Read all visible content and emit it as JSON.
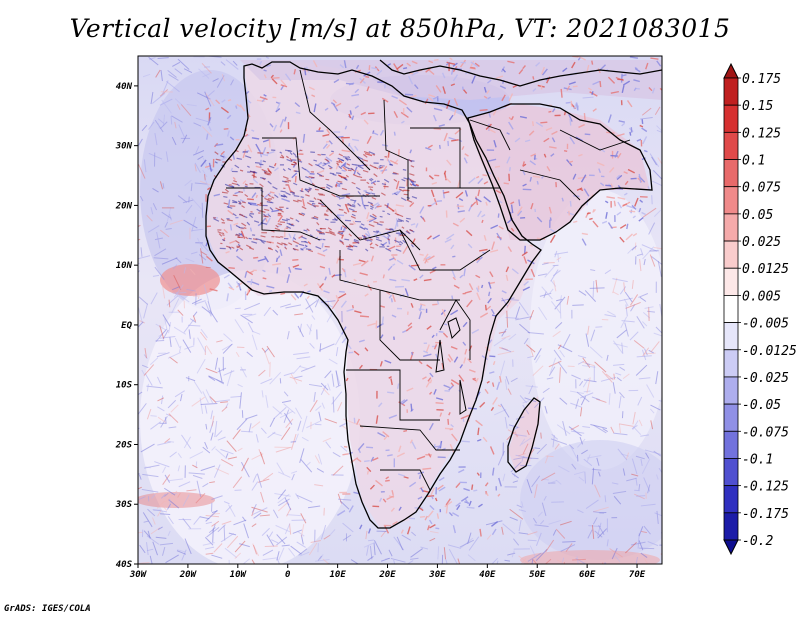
{
  "title": "Vertical velocity [m/s] at 850hPa, VT: 2021083015",
  "footer": "GrADS: IGES/COLA",
  "map": {
    "lon_range": [
      -30,
      75
    ],
    "lat_range": [
      -40,
      45
    ],
    "lat_ticks": [
      {
        "value": 40,
        "label": "40N"
      },
      {
        "value": 30,
        "label": "30N"
      },
      {
        "value": 20,
        "label": "20N"
      },
      {
        "value": 10,
        "label": "10N"
      },
      {
        "value": 0,
        "label": "EQ"
      },
      {
        "value": -10,
        "label": "10S"
      },
      {
        "value": -20,
        "label": "20S"
      },
      {
        "value": -30,
        "label": "30S"
      },
      {
        "value": -40,
        "label": "40S"
      }
    ],
    "lon_ticks": [
      {
        "value": -30,
        "label": "30W"
      },
      {
        "value": -20,
        "label": "20W"
      },
      {
        "value": -10,
        "label": "10W"
      },
      {
        "value": 0,
        "label": "0"
      },
      {
        "value": 10,
        "label": "10E"
      },
      {
        "value": 20,
        "label": "20E"
      },
      {
        "value": 30,
        "label": "30E"
      },
      {
        "value": 40,
        "label": "40E"
      },
      {
        "value": 50,
        "label": "50E"
      },
      {
        "value": 60,
        "label": "60E"
      },
      {
        "value": 70,
        "label": "70E"
      }
    ]
  },
  "colorbar": {
    "levels": [
      "0.175",
      "0.15",
      "0.125",
      "0.1",
      "0.075",
      "0.05",
      "0.025",
      "0.0125",
      "0.005",
      "-0.005",
      "-0.0125",
      "-0.025",
      "-0.05",
      "-0.075",
      "-0.1",
      "-0.125",
      "-0.175",
      "-0.2"
    ],
    "colors": [
      "#a01616",
      "#c02020",
      "#d63030",
      "#e04a4a",
      "#e86a6a",
      "#f08a8a",
      "#f5aaaa",
      "#f9cccc",
      "#fde8e8",
      "#ffffff",
      "#e6e6fa",
      "#ccccf5",
      "#aeaeee",
      "#9090e6",
      "#7272dd",
      "#5050d0",
      "#3030c0",
      "#1c1ca8",
      "#0f0f90"
    ]
  }
}
